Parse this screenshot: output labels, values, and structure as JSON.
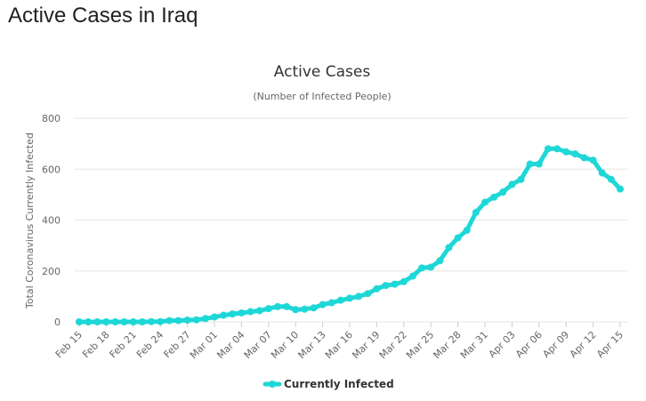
{
  "page": {
    "title": "Active Cases in Iraq"
  },
  "chart_data": {
    "type": "line",
    "title": "Active Cases",
    "subtitle": "(Number of Infected People)",
    "ylabel": "Total Coronavirus Currently Infected",
    "xlabel": "",
    "ylim": [
      0,
      800
    ],
    "yticks": [
      0,
      200,
      400,
      600,
      800
    ],
    "grid": true,
    "legend_position": "bottom-center",
    "x": [
      "Feb 15",
      "Feb 16",
      "Feb 17",
      "Feb 18",
      "Feb 19",
      "Feb 20",
      "Feb 21",
      "Feb 22",
      "Feb 23",
      "Feb 24",
      "Feb 25",
      "Feb 26",
      "Feb 27",
      "Feb 28",
      "Feb 29",
      "Mar 01",
      "Mar 02",
      "Mar 03",
      "Mar 04",
      "Mar 05",
      "Mar 06",
      "Mar 07",
      "Mar 08",
      "Mar 09",
      "Mar 10",
      "Mar 11",
      "Mar 12",
      "Mar 13",
      "Mar 14",
      "Mar 15",
      "Mar 16",
      "Mar 17",
      "Mar 18",
      "Mar 19",
      "Mar 20",
      "Mar 21",
      "Mar 22",
      "Mar 23",
      "Mar 24",
      "Mar 25",
      "Mar 26",
      "Mar 27",
      "Mar 28",
      "Mar 29",
      "Mar 30",
      "Mar 31",
      "Apr 01",
      "Apr 02",
      "Apr 03",
      "Apr 04",
      "Apr 05",
      "Apr 06",
      "Apr 07",
      "Apr 08",
      "Apr 09",
      "Apr 10",
      "Apr 11",
      "Apr 12",
      "Apr 13",
      "Apr 14",
      "Apr 15"
    ],
    "x_tick_labels": [
      "Feb 15",
      "Feb 18",
      "Feb 21",
      "Feb 24",
      "Feb 27",
      "Mar 01",
      "Mar 04",
      "Mar 07",
      "Mar 10",
      "Mar 13",
      "Mar 16",
      "Mar 19",
      "Mar 22",
      "Mar 25",
      "Mar 28",
      "Mar 31",
      "Apr 03",
      "Apr 06",
      "Apr 09",
      "Apr 12",
      "Apr 15"
    ],
    "series": [
      {
        "name": "Currently Infected",
        "color": "#1ED7D7",
        "values": [
          0,
          0,
          0,
          0,
          0,
          0,
          0,
          0,
          1,
          1,
          5,
          5,
          7,
          8,
          13,
          19,
          26,
          31,
          35,
          40,
          44,
          52,
          60,
          60,
          48,
          50,
          55,
          68,
          75,
          85,
          93,
          100,
          111,
          130,
          143,
          148,
          158,
          180,
          212,
          215,
          240,
          292,
          330,
          360,
          430,
          470,
          490,
          510,
          540,
          560,
          620,
          620,
          680,
          680,
          668,
          660,
          645,
          635,
          585,
          560,
          522
        ]
      }
    ]
  }
}
